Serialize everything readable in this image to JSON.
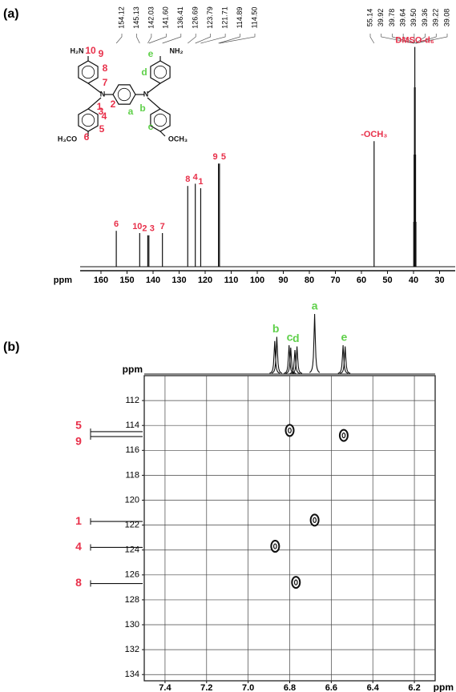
{
  "chart_data": [
    {
      "type": "spectrum",
      "title": "(a)",
      "x_label": "ppm",
      "color": "#111111",
      "annotation_color": "#e8304a",
      "xlim": [
        168,
        24
      ],
      "xticks": [
        160,
        150,
        140,
        130,
        120,
        110,
        100,
        90,
        80,
        70,
        60,
        50,
        40,
        30
      ],
      "ylim": [
        0,
        100
      ],
      "peaks": {
        "x": [
          154.12,
          145.13,
          142.03,
          141.6,
          136.41,
          126.69,
          123.79,
          121.71,
          114.89,
          114.5,
          55.14,
          39.92,
          39.78,
          39.64,
          39.5,
          39.36,
          39.22,
          39.08
        ],
        "values": [
          16,
          15,
          14,
          14,
          15,
          36,
          37,
          35,
          46,
          46,
          56,
          20,
          50,
          80,
          98,
          80,
          50,
          20
        ]
      },
      "x_labels": [
        "154.12",
        "145.13",
        "142.03",
        "141.60",
        "136.41",
        "126.69",
        "123.79",
        "121.71",
        "114.89",
        "114.50",
        "55.14",
        "39.92",
        "39.78",
        "39.64",
        "39.50",
        "39.36",
        "39.22",
        "39.08"
      ],
      "annotations": [
        {
          "text": "6",
          "x": 154.12
        },
        {
          "text": "10",
          "x": 145.13
        },
        {
          "text": "2",
          "x": 142.03
        },
        {
          "text": "3",
          "x": 141.6
        },
        {
          "text": "7",
          "x": 136.41
        },
        {
          "text": "8",
          "x": 126.69
        },
        {
          "text": "4",
          "x": 123.79
        },
        {
          "text": "1",
          "x": 121.71
        },
        {
          "text": "9",
          "x": 114.89
        },
        {
          "text": "5",
          "x": 114.5
        },
        {
          "text": "-OCH₃",
          "x": 55.14
        },
        {
          "text": "DMSO-d₆",
          "x": 39.5
        }
      ],
      "structure": {
        "labels": [
          {
            "text": "H₂N",
            "color": "#111111"
          },
          {
            "text": "10",
            "color": "#e8304a"
          },
          {
            "text": "9",
            "color": "#e8304a"
          },
          {
            "text": "8",
            "color": "#e8304a"
          },
          {
            "text": "7",
            "color": "#e8304a"
          },
          {
            "text": "N",
            "color": "#111111"
          },
          {
            "text": "2",
            "color": "#e8304a"
          },
          {
            "text": "1",
            "color": "#e8304a"
          },
          {
            "text": "3",
            "color": "#e8304a"
          },
          {
            "text": "4",
            "color": "#e8304a"
          },
          {
            "text": "5",
            "color": "#e8304a"
          },
          {
            "text": "6",
            "color": "#e8304a"
          },
          {
            "text": "H₃CO",
            "color": "#111111"
          },
          {
            "text": "NH₂",
            "color": "#111111"
          },
          {
            "text": "e",
            "color": "#5fd04a"
          },
          {
            "text": "d",
            "color": "#5fd04a"
          },
          {
            "text": "N",
            "color": "#111111"
          },
          {
            "text": "a",
            "color": "#5fd04a"
          },
          {
            "text": "b",
            "color": "#5fd04a"
          },
          {
            "text": "c",
            "color": "#5fd04a"
          },
          {
            "text": "OCH₃",
            "color": "#111111"
          }
        ]
      }
    },
    {
      "type": "hsqc",
      "title": "(b)",
      "x_label": "ppm",
      "y_label": "ppm",
      "color": "#111111",
      "grid": true,
      "xlim": [
        7.5,
        6.1
      ],
      "xticks": [
        7.4,
        7.2,
        {
          "value": 7,
          "label": "7.0"
        },
        6.8,
        6.6,
        6.4,
        6.2
      ],
      "ylim": [
        110,
        134.5
      ],
      "yticks": [
        112,
        114,
        116,
        118,
        120,
        122,
        124,
        126,
        128,
        130,
        132,
        134
      ],
      "cross_peaks": {
        "x": [
          6.8,
          6.54,
          6.68,
          6.87,
          6.77
        ],
        "y": [
          114.4,
          114.8,
          121.6,
          123.7,
          126.6
        ]
      },
      "h_projection": {
        "x": [
          6.872,
          6.862,
          6.803,
          6.795,
          6.775,
          6.765,
          6.68,
          6.543,
          6.533
        ],
        "values": [
          55,
          62,
          48,
          44,
          40,
          46,
          100,
          48,
          46
        ]
      },
      "h_labels": [
        {
          "text": "b",
          "x": 6.867
        },
        {
          "text": "c",
          "x": 6.8
        },
        {
          "text": "d",
          "x": 6.77
        },
        {
          "text": "a",
          "x": 6.68
        },
        {
          "text": "e",
          "x": 6.538
        }
      ],
      "h_label_color": "#5fd04a",
      "c_projection": {
        "y": [
          114.5,
          114.89,
          121.71,
          123.79,
          126.69
        ],
        "values": [
          100,
          100,
          100,
          100,
          100
        ]
      },
      "c_labels": [
        {
          "text": "5",
          "y": 114.5
        },
        {
          "text": "9",
          "y": 114.89
        },
        {
          "text": "1",
          "y": 121.71
        },
        {
          "text": "4",
          "y": 123.79
        },
        {
          "text": "8",
          "y": 126.69
        }
      ],
      "c_label_color": "#e8304a"
    }
  ]
}
